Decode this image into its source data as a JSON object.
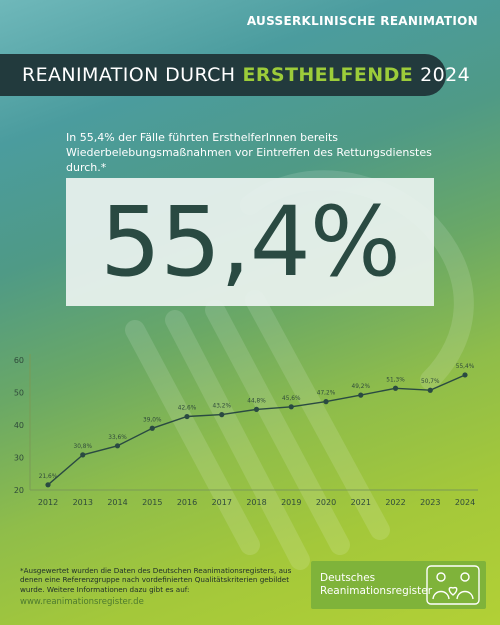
{
  "header": {
    "kicker": "AUSSERKLINISCHE REANIMATION",
    "title_main": "REANIMATION DURCH",
    "title_accent": "ERSTHELFENDE",
    "title_year": "2024"
  },
  "intro": {
    "text": "In 55,4% der Fälle führten ErsthelferInnen bereits Wiederbelebungsmaßnahmen vor Eintreffen des Rettungsdienstes durch.*"
  },
  "highlight": {
    "value": "55,4%"
  },
  "chart_data": {
    "type": "line",
    "x": [
      "2012",
      "2013",
      "2014",
      "2015",
      "2016",
      "2017",
      "2018",
      "2019",
      "2020",
      "2021",
      "2022",
      "2023",
      "2024"
    ],
    "values": [
      21.6,
      30.8,
      33.6,
      39.0,
      42.6,
      43.2,
      44.8,
      45.6,
      47.2,
      49.2,
      51.3,
      50.7,
      55.4
    ],
    "labels": [
      "21,6%",
      "30,8%",
      "33,6%",
      "39,0%",
      "42,6%",
      "43,2%",
      "44,8%",
      "45,6%",
      "47,2%",
      "49,2%",
      "51,3%",
      "50,7%",
      "55,4%"
    ],
    "yticks": [
      "20",
      "30",
      "40",
      "50",
      "60"
    ],
    "ylim": [
      20,
      60
    ],
    "grid": false,
    "line_color": "#2a4a42"
  },
  "footer": {
    "note": "*Ausgewertet wurden die Daten des Deutschen Reanimationsregisters, aus denen eine Referenzgruppe nach vordefinierten Qualitätskriterien gebildet wurde. Weitere Informationen dazu gibt es auf:",
    "url": "www.reanimationsregister.de"
  },
  "logo": {
    "line1": "Deutsches",
    "line2": "Reanimationsregister"
  }
}
